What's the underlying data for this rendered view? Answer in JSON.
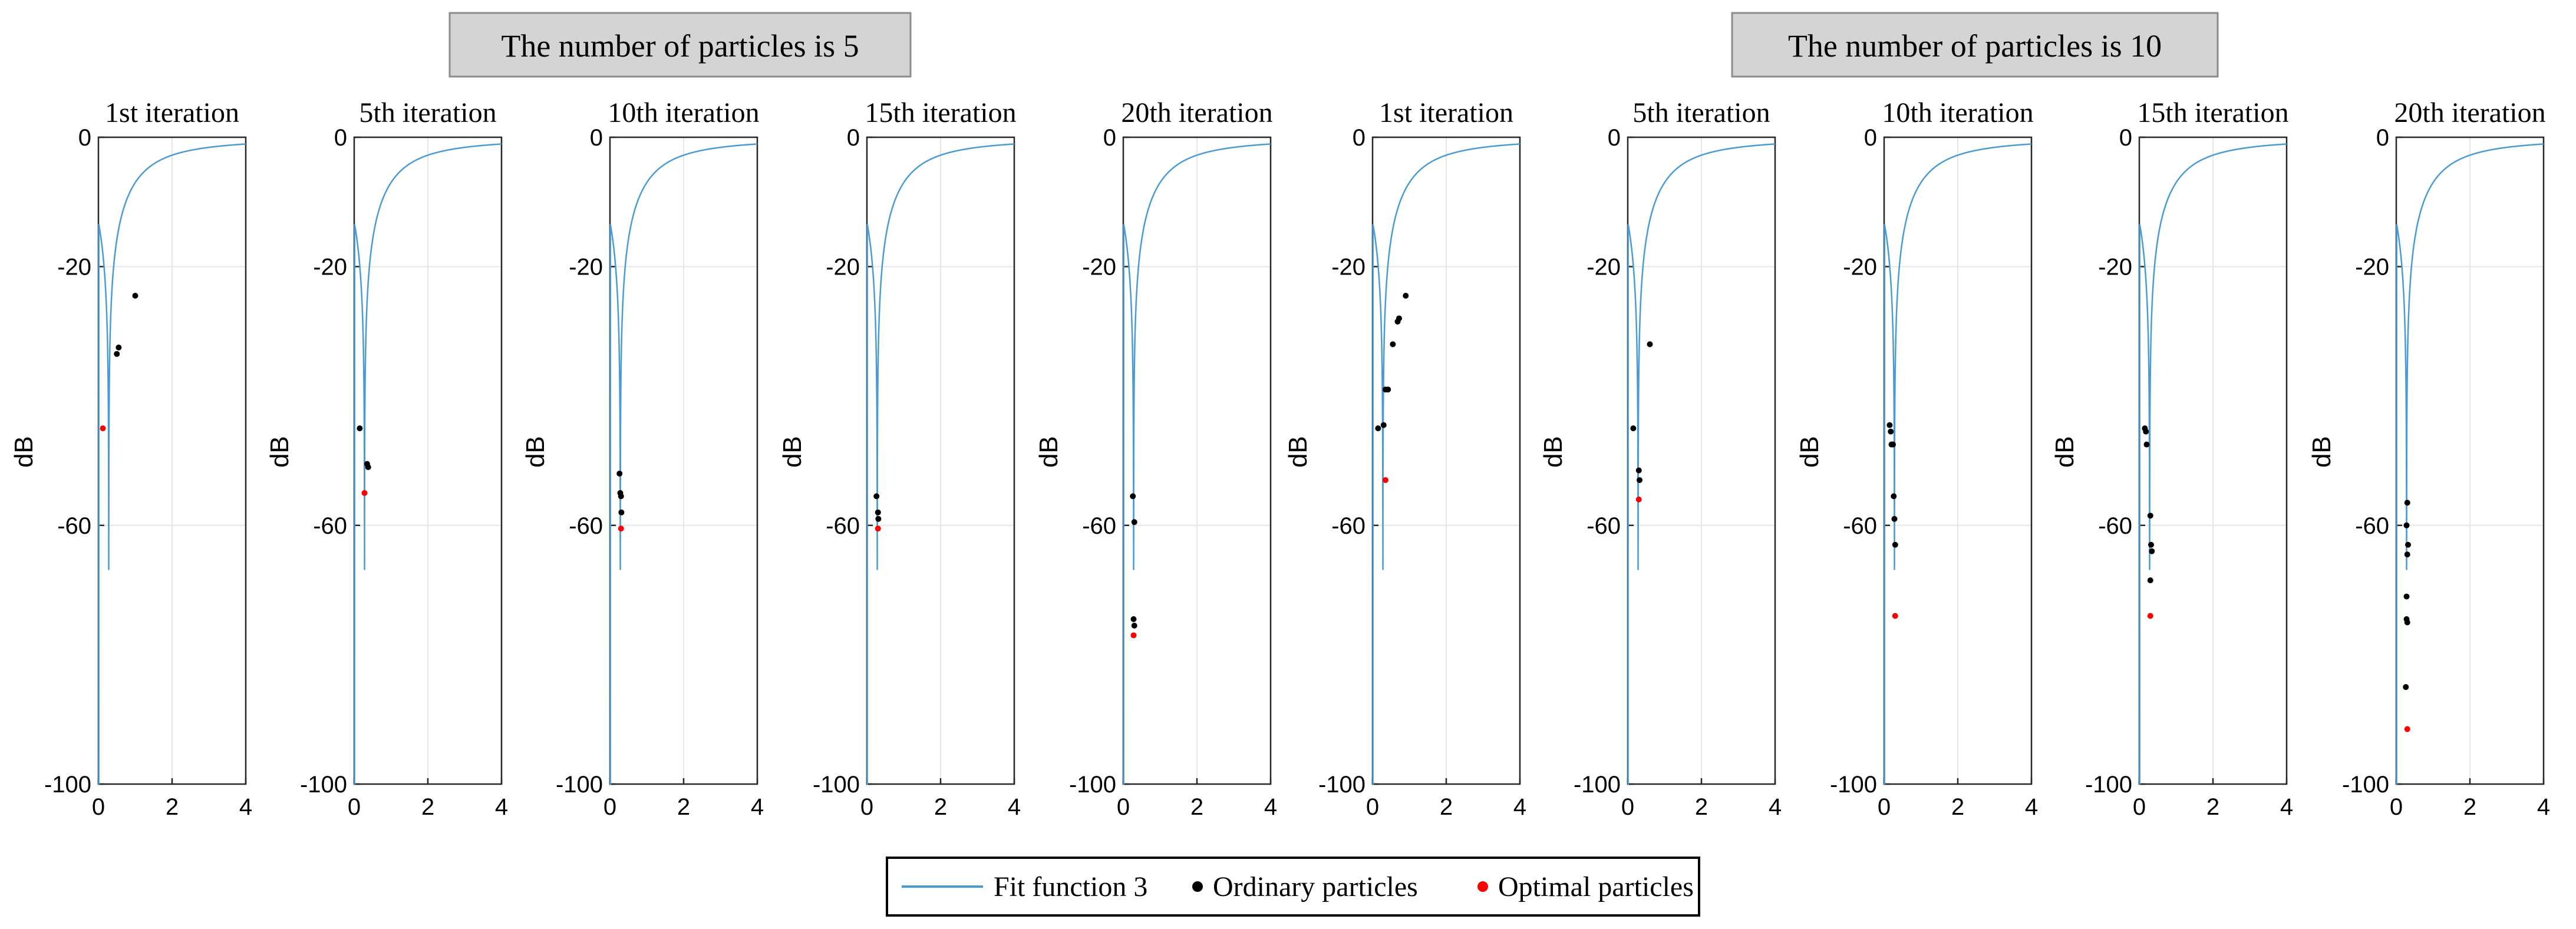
{
  "headers": [
    {
      "text": "The number of particles is 5"
    },
    {
      "text": "The number of particles is 10"
    }
  ],
  "legend": {
    "items": [
      {
        "label": "Fit function 3",
        "kind": "line",
        "color": "#4a9bd3"
      },
      {
        "label": "Ordinary particles",
        "kind": "marker",
        "color": "#000000"
      },
      {
        "label": "Optimal particles",
        "kind": "marker",
        "color": "#ff0000"
      }
    ]
  },
  "chart_data": [
    {
      "type": "line",
      "title": "1st iteration",
      "ylabel": "dB",
      "xlim": [
        0,
        4
      ],
      "ylim": [
        -100,
        0
      ],
      "xticks": [
        0,
        2,
        4
      ],
      "yticks": [
        0,
        -20,
        -60,
        -100
      ],
      "grid": true,
      "curve": "Fit function 3",
      "ordinary": [
        [
          0.5,
          -33.5
        ],
        [
          0.55,
          -32.5
        ],
        [
          1.0,
          -24.5
        ]
      ],
      "optimal": [
        [
          0.12,
          -45
        ]
      ]
    },
    {
      "type": "line",
      "title": "5th iteration",
      "ylabel": "dB",
      "xlim": [
        0,
        4
      ],
      "ylim": [
        -100,
        0
      ],
      "xticks": [
        0,
        2,
        4
      ],
      "yticks": [
        0,
        -20,
        -60,
        -100
      ],
      "grid": true,
      "curve": "Fit function 3",
      "ordinary": [
        [
          0.15,
          -45
        ],
        [
          0.35,
          -50.5
        ],
        [
          0.38,
          -51
        ]
      ],
      "optimal": [
        [
          0.28,
          -55
        ]
      ]
    },
    {
      "type": "line",
      "title": "10th iteration",
      "ylabel": "dB",
      "xlim": [
        0,
        4
      ],
      "ylim": [
        -100,
        0
      ],
      "xticks": [
        0,
        2,
        4
      ],
      "yticks": [
        0,
        -20,
        -60,
        -100
      ],
      "grid": true,
      "curve": "Fit function 3",
      "ordinary": [
        [
          0.26,
          -52
        ],
        [
          0.28,
          -55
        ],
        [
          0.3,
          -55.5
        ],
        [
          0.31,
          -58
        ]
      ],
      "optimal": [
        [
          0.3,
          -60.5
        ]
      ]
    },
    {
      "type": "line",
      "title": "15th iteration",
      "ylabel": "dB",
      "xlim": [
        0,
        4
      ],
      "ylim": [
        -100,
        0
      ],
      "xticks": [
        0,
        2,
        4
      ],
      "yticks": [
        0,
        -20,
        -60,
        -100
      ],
      "grid": true,
      "curve": "Fit function 3",
      "ordinary": [
        [
          0.26,
          -55.5
        ],
        [
          0.3,
          -58
        ],
        [
          0.31,
          -59
        ]
      ],
      "optimal": [
        [
          0.3,
          -60.5
        ]
      ]
    },
    {
      "type": "line",
      "title": "20th iteration",
      "ylabel": "dB",
      "xlim": [
        0,
        4
      ],
      "ylim": [
        -100,
        0
      ],
      "xticks": [
        0,
        2,
        4
      ],
      "yticks": [
        0,
        -20,
        -60,
        -100
      ],
      "grid": true,
      "curve": "Fit function 3",
      "ordinary": [
        [
          0.26,
          -55.5
        ],
        [
          0.3,
          -59.5
        ],
        [
          0.28,
          -74.5
        ],
        [
          0.3,
          -75.5
        ]
      ],
      "optimal": [
        [
          0.28,
          -77
        ]
      ]
    },
    {
      "type": "line",
      "title": "1st iteration",
      "ylabel": "dB",
      "xlim": [
        0,
        4
      ],
      "ylim": [
        -100,
        0
      ],
      "xticks": [
        0,
        2,
        4
      ],
      "yticks": [
        0,
        -20,
        -60,
        -100
      ],
      "grid": true,
      "curve": "Fit function 3",
      "ordinary": [
        [
          0.15,
          -45
        ],
        [
          0.3,
          -44.5
        ],
        [
          0.35,
          -39
        ],
        [
          0.42,
          -39
        ],
        [
          0.55,
          -32
        ],
        [
          0.68,
          -28.5
        ],
        [
          0.72,
          -28
        ],
        [
          0.9,
          -24.5
        ]
      ],
      "optimal": [
        [
          0.35,
          -53
        ]
      ]
    },
    {
      "type": "line",
      "title": "5th iteration",
      "ylabel": "dB",
      "xlim": [
        0,
        4
      ],
      "ylim": [
        -100,
        0
      ],
      "xticks": [
        0,
        2,
        4
      ],
      "yticks": [
        0,
        -20,
        -60,
        -100
      ],
      "grid": true,
      "curve": "Fit function 3",
      "ordinary": [
        [
          0.15,
          -45
        ],
        [
          0.3,
          -51.5
        ],
        [
          0.32,
          -53
        ],
        [
          0.6,
          -32
        ]
      ],
      "optimal": [
        [
          0.3,
          -56
        ]
      ]
    },
    {
      "type": "line",
      "title": "10th iteration",
      "ylabel": "dB",
      "xlim": [
        0,
        4
      ],
      "ylim": [
        -100,
        0
      ],
      "xticks": [
        0,
        2,
        4
      ],
      "yticks": [
        0,
        -20,
        -60,
        -100
      ],
      "grid": true,
      "curve": "Fit function 3",
      "ordinary": [
        [
          0.15,
          -44.5
        ],
        [
          0.18,
          -45.5
        ],
        [
          0.2,
          -47.5
        ],
        [
          0.24,
          -47.5
        ],
        [
          0.26,
          -55.5
        ],
        [
          0.28,
          -59
        ],
        [
          0.3,
          -63
        ]
      ],
      "optimal": [
        [
          0.3,
          -74
        ]
      ]
    },
    {
      "type": "line",
      "title": "15th iteration",
      "ylabel": "dB",
      "xlim": [
        0,
        4
      ],
      "ylim": [
        -100,
        0
      ],
      "xticks": [
        0,
        2,
        4
      ],
      "yticks": [
        0,
        -20,
        -60,
        -100
      ],
      "grid": true,
      "curve": "Fit function 3",
      "ordinary": [
        [
          0.15,
          -45
        ],
        [
          0.18,
          -45.5
        ],
        [
          0.2,
          -47.5
        ],
        [
          0.3,
          -58.5
        ],
        [
          0.32,
          -63
        ],
        [
          0.34,
          -64
        ],
        [
          0.3,
          -68.5
        ]
      ],
      "optimal": [
        [
          0.3,
          -74
        ]
      ]
    },
    {
      "type": "line",
      "title": "20th iteration",
      "ylabel": "dB",
      "xlim": [
        0,
        4
      ],
      "ylim": [
        -100,
        0
      ],
      "xticks": [
        0,
        2,
        4
      ],
      "yticks": [
        0,
        -20,
        -60,
        -100
      ],
      "grid": true,
      "curve": "Fit function 3",
      "ordinary": [
        [
          0.3,
          -56.5
        ],
        [
          0.28,
          -60
        ],
        [
          0.32,
          -63
        ],
        [
          0.3,
          -64.5
        ],
        [
          0.28,
          -71
        ],
        [
          0.28,
          -74.5
        ],
        [
          0.3,
          -75
        ],
        [
          0.26,
          -85
        ]
      ],
      "optimal": [
        [
          0.3,
          -91.5
        ]
      ]
    }
  ]
}
